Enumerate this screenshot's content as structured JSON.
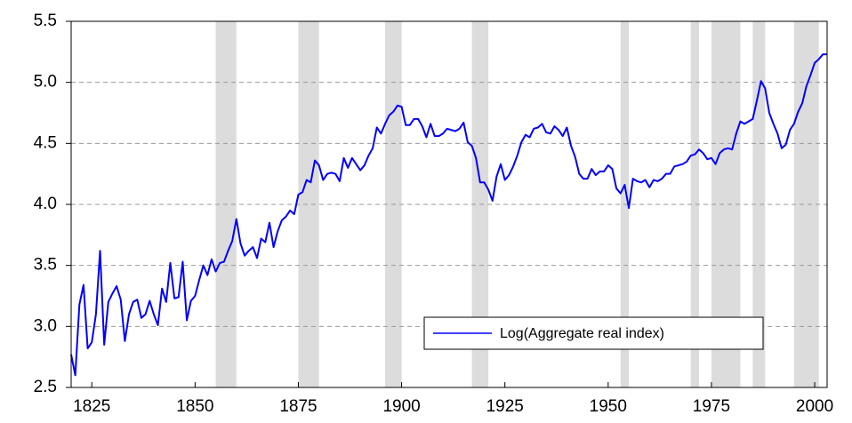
{
  "chart_data": {
    "type": "line",
    "x": [
      1820,
      1821,
      1822,
      1823,
      1824,
      1825,
      1826,
      1827,
      1828,
      1829,
      1830,
      1831,
      1832,
      1833,
      1834,
      1835,
      1836,
      1837,
      1838,
      1839,
      1840,
      1841,
      1842,
      1843,
      1844,
      1845,
      1846,
      1847,
      1848,
      1849,
      1850,
      1851,
      1852,
      1853,
      1854,
      1855,
      1856,
      1857,
      1858,
      1859,
      1860,
      1861,
      1862,
      1863,
      1864,
      1865,
      1866,
      1867,
      1868,
      1869,
      1870,
      1871,
      1872,
      1873,
      1874,
      1875,
      1876,
      1877,
      1878,
      1879,
      1880,
      1881,
      1882,
      1883,
      1884,
      1885,
      1886,
      1887,
      1888,
      1889,
      1890,
      1891,
      1892,
      1893,
      1894,
      1895,
      1896,
      1897,
      1898,
      1899,
      1900,
      1901,
      1902,
      1903,
      1904,
      1905,
      1906,
      1907,
      1908,
      1909,
      1910,
      1911,
      1912,
      1913,
      1914,
      1915,
      1916,
      1917,
      1918,
      1919,
      1920,
      1921,
      1922,
      1923,
      1924,
      1925,
      1926,
      1927,
      1928,
      1929,
      1930,
      1931,
      1932,
      1933,
      1934,
      1935,
      1936,
      1937,
      1938,
      1939,
      1940,
      1941,
      1942,
      1943,
      1944,
      1945,
      1946,
      1947,
      1948,
      1949,
      1950,
      1951,
      1952,
      1953,
      1954,
      1955,
      1956,
      1957,
      1958,
      1959,
      1960,
      1961,
      1962,
      1963,
      1964,
      1965,
      1966,
      1967,
      1968,
      1969,
      1970,
      1971,
      1972,
      1973,
      1974,
      1975,
      1976,
      1977,
      1978,
      1979,
      1980,
      1981,
      1982,
      1983,
      1984,
      1985,
      1986,
      1987,
      1988,
      1989,
      1990,
      1991,
      1992,
      1993,
      1994,
      1995,
      1996,
      1997,
      1998,
      1999,
      2000,
      2001,
      2002,
      2003
    ],
    "series": [
      {
        "name": "Log(Aggregate real index)",
        "color": "#0000ff",
        "values": [
          2.77,
          2.6,
          3.18,
          3.34,
          2.82,
          2.87,
          3.1,
          3.62,
          2.85,
          3.2,
          3.27,
          3.33,
          3.22,
          2.88,
          3.1,
          3.2,
          3.22,
          3.07,
          3.1,
          3.21,
          3.1,
          3.01,
          3.31,
          3.2,
          3.52,
          3.23,
          3.24,
          3.53,
          3.05,
          3.21,
          3.25,
          3.38,
          3.5,
          3.42,
          3.55,
          3.45,
          3.52,
          3.53,
          3.62,
          3.7,
          3.88,
          3.68,
          3.58,
          3.62,
          3.65,
          3.56,
          3.72,
          3.69,
          3.85,
          3.65,
          3.78,
          3.87,
          3.9,
          3.95,
          3.92,
          4.08,
          4.1,
          4.2,
          4.18,
          4.36,
          4.32,
          4.2,
          4.25,
          4.26,
          4.25,
          4.19,
          4.38,
          4.3,
          4.38,
          4.33,
          4.28,
          4.32,
          4.4,
          4.46,
          4.63,
          4.58,
          4.66,
          4.73,
          4.76,
          4.81,
          4.8,
          4.65,
          4.65,
          4.7,
          4.7,
          4.64,
          4.55,
          4.66,
          4.56,
          4.56,
          4.58,
          4.62,
          4.61,
          4.6,
          4.62,
          4.67,
          4.51,
          4.48,
          4.38,
          4.18,
          4.18,
          4.12,
          4.03,
          4.23,
          4.33,
          4.2,
          4.24,
          4.31,
          4.4,
          4.51,
          4.57,
          4.55,
          4.62,
          4.63,
          4.66,
          4.59,
          4.58,
          4.64,
          4.61,
          4.56,
          4.63,
          4.48,
          4.39,
          4.25,
          4.21,
          4.21,
          4.29,
          4.24,
          4.27,
          4.27,
          4.32,
          4.29,
          4.13,
          4.09,
          4.16,
          3.97,
          4.21,
          4.19,
          4.18,
          4.2,
          4.14,
          4.2,
          4.19,
          4.21,
          4.25,
          4.25,
          4.31,
          4.32,
          4.33,
          4.35,
          4.4,
          4.41,
          4.45,
          4.42,
          4.37,
          4.38,
          4.33,
          4.42,
          4.45,
          4.46,
          4.45,
          4.58,
          4.68,
          4.66,
          4.68,
          4.7,
          4.85,
          5.01,
          4.95,
          4.75,
          4.66,
          4.58,
          4.46,
          4.49,
          4.61,
          4.66,
          4.76,
          4.83,
          4.97,
          5.06,
          5.16,
          5.19,
          5.23,
          5.23
        ]
      }
    ],
    "shaded_periods": [
      [
        1855,
        1860
      ],
      [
        1875,
        1880
      ],
      [
        1896,
        1900
      ],
      [
        1917,
        1921
      ],
      [
        1953,
        1955
      ],
      [
        1970,
        1972
      ],
      [
        1975,
        1982
      ],
      [
        1985,
        1988
      ],
      [
        1995,
        2001
      ]
    ],
    "shade_color": "#dcdcdc",
    "xlim": [
      1820,
      2003
    ],
    "xticks": [
      1825,
      1850,
      1875,
      1900,
      1925,
      1950,
      1975,
      2000
    ],
    "ylim": [
      2.5,
      5.5
    ],
    "yticks": [
      2.5,
      {
        "value": 3,
        "label": "3.0"
      },
      3.5,
      {
        "value": 4,
        "label": "4.0"
      },
      4.5,
      {
        "value": 5,
        "label": "5.0"
      },
      5.5
    ],
    "grid": true
  }
}
